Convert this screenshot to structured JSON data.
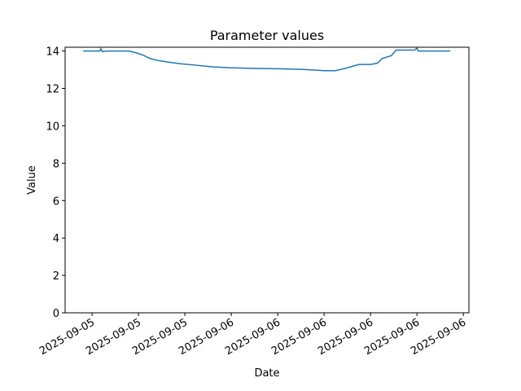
{
  "chart_data": {
    "type": "line",
    "title": "Parameter values",
    "x_label": "Date",
    "y_label": "Value",
    "x": [
      -0.19,
      0.17,
      0.19,
      0.22,
      0.35,
      0.8,
      0.95,
      1.1,
      1.25,
      1.4,
      1.6,
      1.9,
      2.2,
      2.6,
      3.0,
      3.5,
      4.0,
      4.5,
      5.0,
      5.25,
      5.5,
      5.75,
      6.0,
      6.15,
      6.25,
      6.45,
      6.55,
      6.95,
      7.0,
      7.03,
      7.72
    ],
    "series": [
      {
        "name": "Value",
        "color": "#1f77b4",
        "values": [
          14.0,
          14.0,
          14.12,
          13.97,
          14.0,
          14.0,
          13.9,
          13.78,
          13.6,
          13.5,
          13.42,
          13.32,
          13.25,
          13.15,
          13.1,
          13.07,
          13.05,
          13.02,
          12.95,
          12.95,
          13.1,
          13.28,
          13.28,
          13.35,
          13.6,
          13.75,
          14.05,
          14.05,
          14.15,
          14.0,
          14.0
        ]
      }
    ],
    "xlim": [
      -0.58,
      8.12
    ],
    "xticks": [
      {
        "value": 0,
        "label": "2025-09-05"
      },
      {
        "value": 1,
        "label": "2025-09-05"
      },
      {
        "value": 2,
        "label": "2025-09-05"
      },
      {
        "value": 3,
        "label": "2025-09-06"
      },
      {
        "value": 4,
        "label": "2025-09-06"
      },
      {
        "value": 5,
        "label": "2025-09-06"
      },
      {
        "value": 6,
        "label": "2025-09-06"
      },
      {
        "value": 7,
        "label": "2025-09-06"
      },
      {
        "value": 8,
        "label": "2025-09-06"
      }
    ],
    "ylim": [
      0,
      14.2
    ],
    "yticks": [
      0,
      2,
      4,
      6,
      8,
      10,
      12,
      14
    ]
  }
}
